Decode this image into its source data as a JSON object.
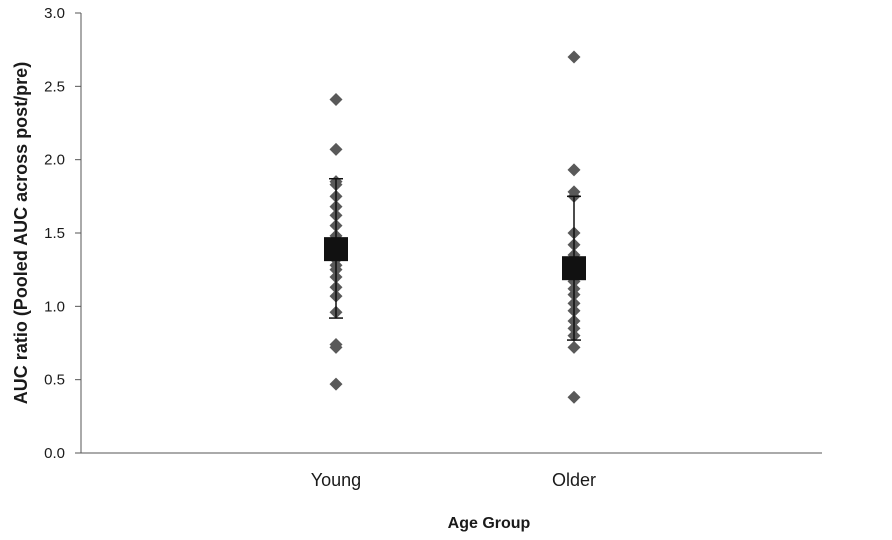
{
  "chart_data": {
    "type": "scatter",
    "xlabel": "Age Group",
    "ylabel": "AUC ratio (Pooled AUC across post/pre)",
    "ylim": [
      0,
      3.0
    ],
    "yticks": [
      "0.0",
      "0.5",
      "1.0",
      "1.5",
      "2.0",
      "2.5",
      "3.0"
    ],
    "categories": [
      "Young",
      "Older"
    ],
    "grid": false,
    "legend": "none",
    "colors": {
      "points": "#595959",
      "mean": "#111111",
      "axis": "#555555"
    },
    "series": [
      {
        "category": "Young",
        "values": [
          2.41,
          2.07,
          1.85,
          1.83,
          1.75,
          1.68,
          1.62,
          1.55,
          1.48,
          1.42,
          1.37,
          1.32,
          1.28,
          1.25,
          1.2,
          1.13,
          1.07,
          0.96,
          0.74,
          0.72,
          0.47
        ],
        "mean": 1.39,
        "error_upper": 1.87,
        "error_lower": 0.92
      },
      {
        "category": "Older",
        "values": [
          2.7,
          1.93,
          1.78,
          1.75,
          1.5,
          1.42,
          1.35,
          1.28,
          1.22,
          1.17,
          1.12,
          1.08,
          1.02,
          0.97,
          0.9,
          0.85,
          0.8,
          0.72,
          0.38
        ],
        "mean": 1.26,
        "error_upper": 1.75,
        "error_lower": 0.77
      }
    ]
  }
}
